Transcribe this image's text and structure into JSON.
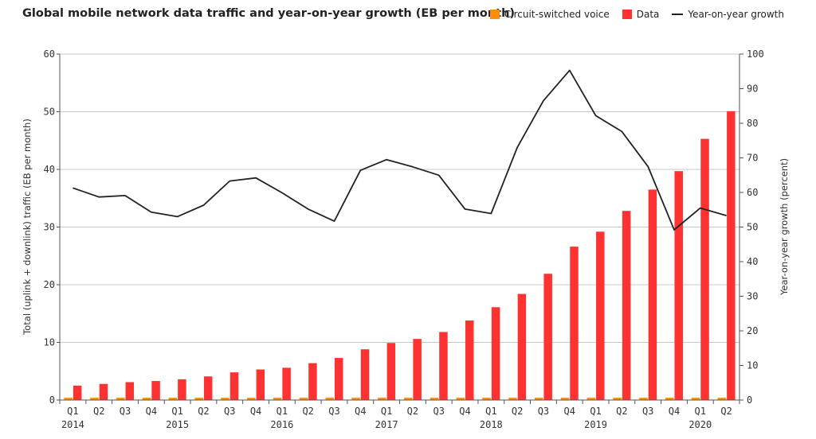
{
  "chart_data": {
    "type": "bar+line",
    "title": "Global mobile network data traffic and year-on-year growth (EB per month)",
    "ylabel_left": "Total (uplink + downlink) traffic (EB per month)",
    "ylabel_right": "Year-on-year growth (percent)",
    "ylim_left": [
      0,
      60
    ],
    "ylim_right": [
      0,
      100
    ],
    "yticks_left": [
      0,
      10,
      20,
      30,
      40,
      50,
      60
    ],
    "yticks_right": [
      0,
      10,
      20,
      30,
      40,
      50,
      60,
      70,
      80,
      90,
      100
    ],
    "grid": true,
    "legend_position": "top-right",
    "categories": [
      "Q1",
      "Q2",
      "Q3",
      "Q4",
      "Q1",
      "Q2",
      "Q3",
      "Q4",
      "Q1",
      "Q2",
      "Q3",
      "Q4",
      "Q1",
      "Q2",
      "Q3",
      "Q4",
      "Q1",
      "Q2",
      "Q3",
      "Q4",
      "Q1",
      "Q2",
      "Q3",
      "Q4",
      "Q1",
      "Q2"
    ],
    "year_labels": [
      {
        "index": 0,
        "label": "2014"
      },
      {
        "index": 4,
        "label": "2015"
      },
      {
        "index": 8,
        "label": "2016"
      },
      {
        "index": 12,
        "label": "2017"
      },
      {
        "index": 16,
        "label": "2018"
      },
      {
        "index": 20,
        "label": "2019"
      },
      {
        "index": 24,
        "label": "2020"
      }
    ],
    "series": [
      {
        "name": "Circuit-switched voice",
        "kind": "bar",
        "axis": "left",
        "color": "#ff8c0a",
        "values": [
          0.4,
          0.4,
          0.4,
          0.4,
          0.4,
          0.4,
          0.4,
          0.4,
          0.4,
          0.4,
          0.4,
          0.4,
          0.4,
          0.4,
          0.4,
          0.4,
          0.4,
          0.4,
          0.4,
          0.4,
          0.4,
          0.4,
          0.4,
          0.4,
          0.4,
          0.4
        ]
      },
      {
        "name": "Data",
        "kind": "bar",
        "axis": "left",
        "color": "#ff3232",
        "values": [
          2.5,
          2.8,
          3.1,
          3.3,
          3.6,
          4.1,
          4.8,
          5.3,
          5.6,
          6.4,
          7.3,
          8.8,
          9.9,
          10.6,
          11.8,
          13.8,
          16.1,
          18.4,
          21.9,
          26.6,
          29.2,
          32.8,
          36.5,
          39.7,
          45.3,
          50.1
        ]
      },
      {
        "name": "Year-on-year growth",
        "kind": "line",
        "axis": "right",
        "color": "#222222",
        "values": [
          61.3,
          58.7,
          59.1,
          54.3,
          53.0,
          56.3,
          63.3,
          64.2,
          59.9,
          55.2,
          51.7,
          66.4,
          69.5,
          67.4,
          65.0,
          55.2,
          53.9,
          73.0,
          86.5,
          95.3,
          82.2,
          77.6,
          67.5,
          49.2,
          55.5,
          53.3
        ]
      }
    ]
  }
}
